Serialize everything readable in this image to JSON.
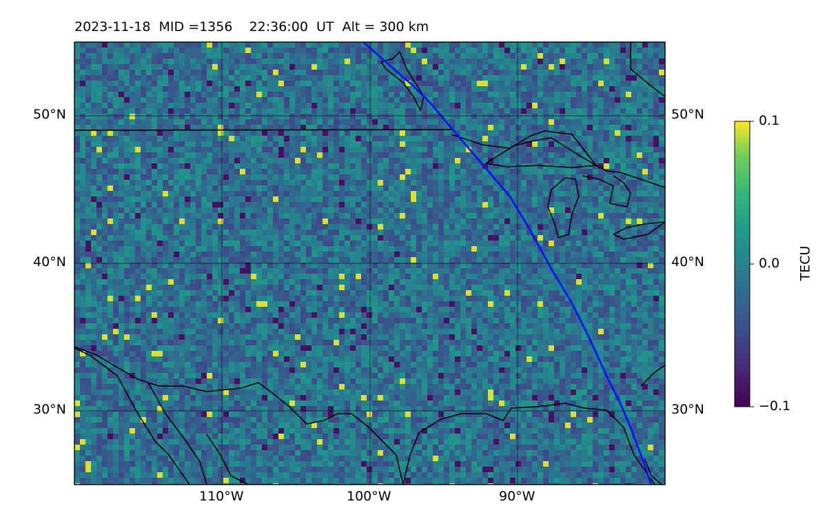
{
  "title": "2023-11-18  MID =1356    22:36:00  UT  Alt = 300 km",
  "map": {
    "lon_range": [
      -120,
      -80
    ],
    "lat_range": [
      25,
      55
    ],
    "lon_ticks": [
      {
        "value": -110,
        "label": "110°W"
      },
      {
        "value": -100,
        "label": "100°W"
      },
      {
        "value": -90,
        "label": "90°W"
      }
    ],
    "lat_ticks": [
      {
        "value": 50,
        "label": "50°N"
      },
      {
        "value": 40,
        "label": "40°N"
      },
      {
        "value": 30,
        "label": "30°N"
      }
    ],
    "grid": true,
    "track_color": "#0a14ff",
    "colormap": "viridis"
  },
  "colorbar": {
    "label": "TECU",
    "min": -0.1,
    "max": 0.1,
    "ticks": [
      {
        "value": 0.1,
        "label": "0.1"
      },
      {
        "value": 0.0,
        "label": "0.0"
      },
      {
        "value": -0.1,
        "label": "−0.1"
      }
    ]
  }
}
